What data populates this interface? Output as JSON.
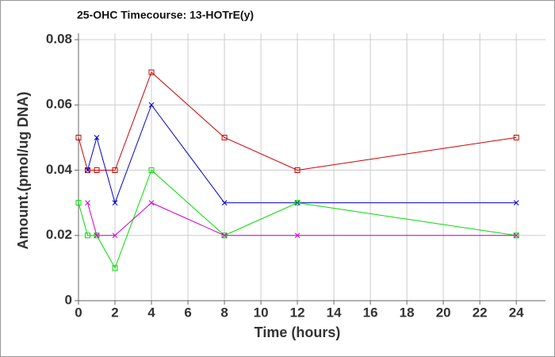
{
  "chart_data": {
    "type": "line",
    "title": "25-OHC Timecourse: 13-HOTrE(y)",
    "x_label": "Time (hours)",
    "y_label": "Amount.(pmol/ug DNA)",
    "xlim": [
      0,
      25.6
    ],
    "xticks": [
      0,
      2,
      4,
      6,
      8,
      10,
      12,
      14,
      16,
      18,
      20,
      22,
      24
    ],
    "ylim": [
      0,
      0.08
    ],
    "yticks": [
      0,
      0.02,
      0.04,
      0.06,
      0.08
    ],
    "grid": true,
    "series": [
      {
        "color": "#cc0000",
        "marker": "square",
        "x": [
          0,
          0.5,
          1,
          2,
          4,
          8,
          12,
          24
        ],
        "values": [
          0.05,
          0.04,
          0.04,
          0.04,
          0.07,
          0.05,
          0.04,
          0.05
        ]
      },
      {
        "color": "#0000cc",
        "marker": "cross",
        "x": [
          0.5,
          1,
          2,
          4,
          8,
          12,
          24
        ],
        "values": [
          0.04,
          0.05,
          0.03,
          0.06,
          0.03,
          0.03,
          0.03
        ]
      },
      {
        "color": "#00dd00",
        "marker": "square",
        "x": [
          0,
          0.5,
          1,
          2,
          4,
          8,
          12,
          24
        ],
        "values": [
          0.03,
          0.02,
          0.02,
          0.01,
          0.04,
          0.02,
          0.03,
          0.02
        ]
      },
      {
        "color": "#cc00cc",
        "marker": "cross",
        "x": [
          0.5,
          1,
          2,
          4,
          8,
          12,
          24
        ],
        "values": [
          0.03,
          0.02,
          0.02,
          0.03,
          0.02,
          0.02,
          0.02
        ]
      }
    ]
  }
}
